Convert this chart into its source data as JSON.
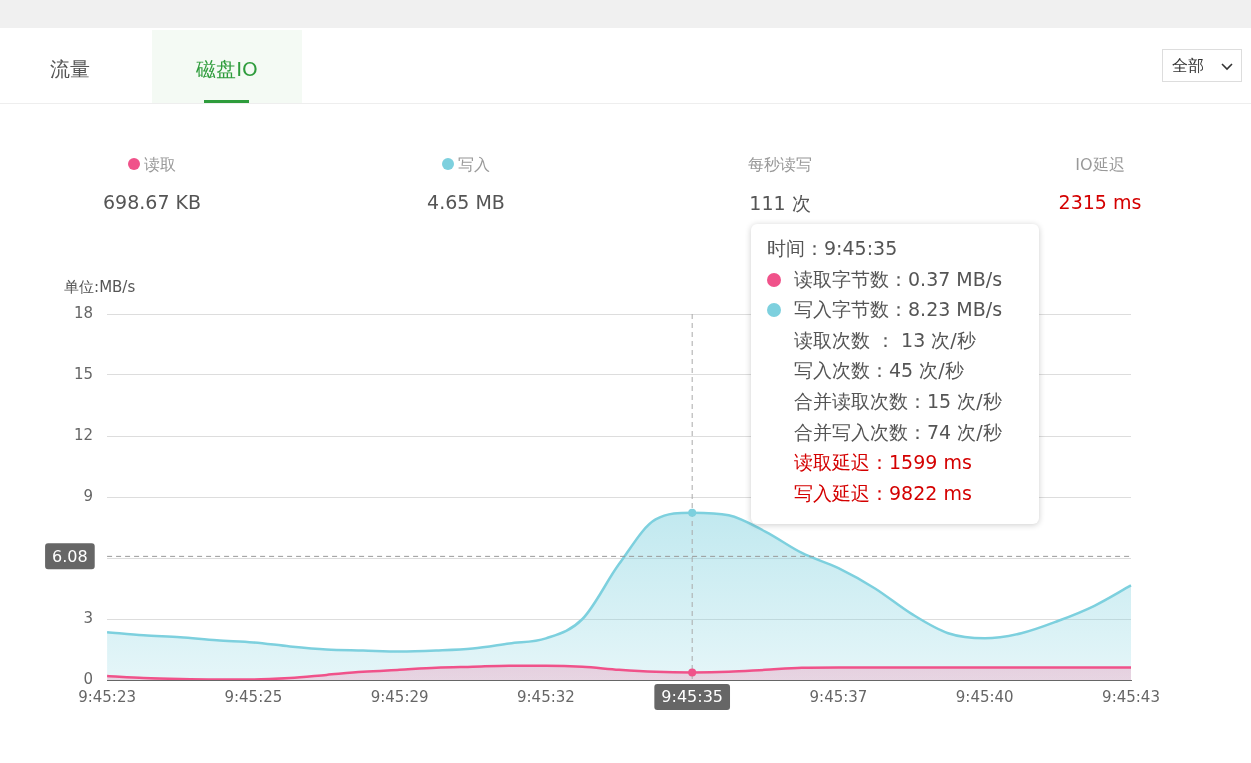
{
  "chart_data": {
    "type": "area",
    "ylabel": "单位:MB/s",
    "categories": [
      "9:45:23",
      null,
      null,
      null,
      "9:45:25",
      null,
      null,
      null,
      "9:45:29",
      null,
      null,
      null,
      "9:45:32",
      null,
      null,
      null,
      "9:45:35",
      null,
      null,
      null,
      "9:45:37",
      null,
      null,
      null,
      "9:45:40",
      null,
      null,
      null,
      "9:45:43"
    ],
    "series": [
      {
        "name": "读取",
        "color": "#f0528a",
        "values": [
          0.2,
          0.1,
          0.05,
          0.03,
          0.03,
          0.1,
          0.25,
          0.4,
          0.5,
          0.6,
          0.65,
          0.7,
          0.7,
          0.65,
          0.5,
          0.4,
          0.37,
          0.4,
          0.5,
          0.6,
          0.62,
          0.62,
          0.62,
          0.62,
          0.62,
          0.62,
          0.62,
          0.62,
          0.62
        ]
      },
      {
        "name": "写入",
        "color": "#7dd0de",
        "values": [
          2.35,
          2.2,
          2.1,
          1.95,
          1.85,
          1.65,
          1.5,
          1.45,
          1.4,
          1.45,
          1.55,
          1.8,
          2.05,
          3.0,
          5.7,
          7.9,
          8.23,
          8.1,
          7.3,
          6.25,
          5.5,
          4.5,
          3.25,
          2.3,
          2.05,
          2.3,
          2.9,
          3.65,
          4.65
        ]
      }
    ],
    "ylim": [
      0,
      18
    ],
    "yticks": [
      0,
      3,
      {
        "value": 6,
        "label": null
      },
      9,
      12,
      15,
      18
    ],
    "grid": "y",
    "legend": "top",
    "ref_lines": [
      {
        "axis": "y",
        "value": 6.08,
        "label": "6.08",
        "line_style": "dashed",
        "color": "#999999"
      },
      {
        "axis": "x",
        "value": "9:45:35",
        "label": "9:45:35",
        "line_style": "dashed",
        "color": "#aaaaaa"
      }
    ],
    "annotations": [
      "流量",
      "磁盘IO",
      "全部",
      "698.67 KB",
      "4.65 MB",
      "每秒读写",
      "111 次",
      "IO延迟",
      "2315 ms",
      "时间：9:45:35",
      "读取字节数：0.37 MB/s",
      "写入字节数：8.23 MB/s",
      "读取次数 ： 13 次/秒",
      "写入次数：45 次/秒",
      "合并读取次数：15 次/秒",
      "合并写入次数：74 次/秒",
      "读取延迟：1599 ms",
      "写入延迟：9822 ms"
    ]
  }
}
